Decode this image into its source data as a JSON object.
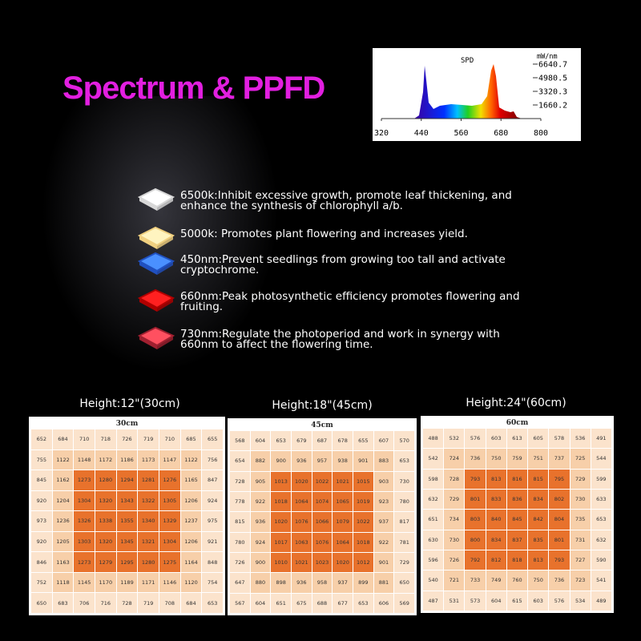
{
  "header": {
    "title": "Spectrum & PPFD"
  },
  "spd": {
    "title": "SPD",
    "unit": "mW/nm",
    "xlim": [
      320,
      800
    ],
    "ylim": [
      0,
      6640.7
    ],
    "xticks": [
      320,
      440,
      560,
      680,
      800
    ],
    "yticks": [
      6640.7,
      4980.5,
      3320.3,
      1660.2
    ]
  },
  "items": [
    {
      "text": "6500k:Inhibit excessive growth, promote leaf thickening, and enhance the synthesis of chlorophyll a/b."
    },
    {
      "text": "5000k: Promotes plant flowering and increases yield."
    },
    {
      "text": "450nm:Prevent seedlings from growing too tall and activate cryptochrome."
    },
    {
      "text": "660nm:Peak photosynthetic efficiency promotes flowering and fruiting."
    },
    {
      "text": "730nm:Regulate the photoperiod and work in synergy with 660nm to affect the flowering time."
    }
  ],
  "grids": [
    {
      "height": "Height:12\"(30cm)",
      "label": "30cm",
      "rows": [
        [
          "652",
          "684",
          "710",
          "718",
          "726",
          "719",
          "710",
          "685",
          "655"
        ],
        [
          "755",
          "1122",
          "1148",
          "1172",
          "1186",
          "1173",
          "1147",
          "1122",
          "756"
        ],
        [
          "845",
          "1162",
          "1273",
          "1280",
          "1294",
          "1281",
          "1276",
          "1165",
          "847"
        ],
        [
          "920",
          "1204",
          "1304",
          "1320",
          "1343",
          "1322",
          "1305",
          "1206",
          "924"
        ],
        [
          "973",
          "1236",
          "1326",
          "1338",
          "1355",
          "1340",
          "1329",
          "1237",
          "975"
        ],
        [
          "920",
          "1205",
          "1303",
          "1320",
          "1345",
          "1321",
          "1304",
          "1206",
          "921"
        ],
        [
          "846",
          "1163",
          "1273",
          "1279",
          "1295",
          "1280",
          "1275",
          "1164",
          "848"
        ],
        [
          "752",
          "1118",
          "1145",
          "1170",
          "1189",
          "1171",
          "1146",
          "1120",
          "754"
        ],
        [
          "650",
          "683",
          "706",
          "716",
          "728",
          "719",
          "708",
          "684",
          "653"
        ]
      ]
    },
    {
      "height": "Height:18\"(45cm)",
      "label": "45cm",
      "rows": [
        [
          "568",
          "604",
          "653",
          "679",
          "687",
          "678",
          "655",
          "607",
          "570"
        ],
        [
          "654",
          "882",
          "900",
          "936",
          "957",
          "938",
          "901",
          "883",
          "653"
        ],
        [
          "728",
          "905",
          "1013",
          "1020",
          "1022",
          "1021",
          "1015",
          "903",
          "730"
        ],
        [
          "778",
          "922",
          "1018",
          "1064",
          "1074",
          "1065",
          "1019",
          "923",
          "780"
        ],
        [
          "815",
          "936",
          "1020",
          "1076",
          "1066",
          "1079",
          "1022",
          "937",
          "817"
        ],
        [
          "780",
          "924",
          "1017",
          "1063",
          "1076",
          "1064",
          "1018",
          "922",
          "781"
        ],
        [
          "726",
          "900",
          "1010",
          "1021",
          "1023",
          "1020",
          "1012",
          "901",
          "729"
        ],
        [
          "647",
          "880",
          "898",
          "936",
          "958",
          "937",
          "899",
          "881",
          "650"
        ],
        [
          "567",
          "604",
          "651",
          "675",
          "688",
          "677",
          "653",
          "606",
          "569"
        ]
      ]
    },
    {
      "height": "Height:24\"(60cm)",
      "label": "60cm",
      "rows": [
        [
          "488",
          "532",
          "576",
          "603",
          "613",
          "605",
          "578",
          "536",
          "491"
        ],
        [
          "542",
          "724",
          "736",
          "750",
          "759",
          "751",
          "737",
          "725",
          "544"
        ],
        [
          "598",
          "728",
          "793",
          "813",
          "816",
          "815",
          "795",
          "729",
          "599"
        ],
        [
          "632",
          "729",
          "801",
          "833",
          "836",
          "834",
          "802",
          "730",
          "633"
        ],
        [
          "651",
          "734",
          "803",
          "840",
          "845",
          "842",
          "804",
          "735",
          "653"
        ],
        [
          "630",
          "730",
          "800",
          "834",
          "837",
          "835",
          "801",
          "731",
          "632"
        ],
        [
          "596",
          "726",
          "792",
          "812",
          "818",
          "813",
          "793",
          "727",
          "590"
        ],
        [
          "540",
          "721",
          "733",
          "749",
          "760",
          "750",
          "736",
          "723",
          "541"
        ],
        [
          "487",
          "531",
          "573",
          "604",
          "615",
          "603",
          "576",
          "534",
          "489"
        ]
      ]
    }
  ]
}
